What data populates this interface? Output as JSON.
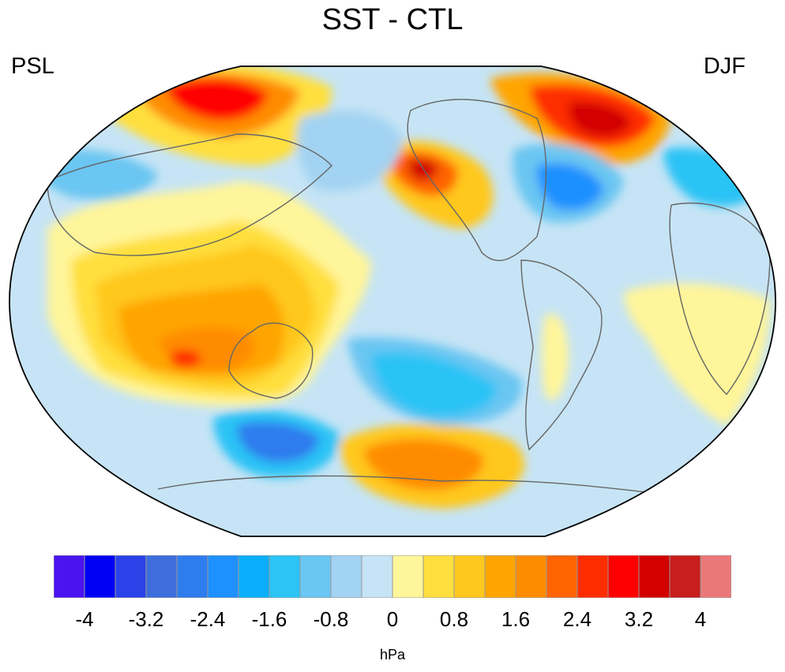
{
  "title": "SST - CTL",
  "left_label": "PSL",
  "right_label": "DJF",
  "units": "hPa",
  "colorbar": {
    "colors": [
      "#4a14f0",
      "#0000f5",
      "#2a42e8",
      "#3d6edc",
      "#2e7cee",
      "#1e90ff",
      "#0aaefa",
      "#2cc3f5",
      "#6ac6f2",
      "#a3d3f2",
      "#c6e4f5",
      "#fff59a",
      "#ffdf3e",
      "#ffc81e",
      "#ffa500",
      "#ff8c00",
      "#ff6400",
      "#ff2d00",
      "#ff0000",
      "#d20000",
      "#c81e1e",
      "#eb7878"
    ],
    "tick_labels": [
      "-4",
      "-3.2",
      "-2.4",
      "-1.6",
      "-0.8",
      "0",
      "0.8",
      "1.6",
      "2.4",
      "3.2",
      "4"
    ]
  },
  "map": {
    "projection": "robinson-pacific-centered",
    "background_color": "#c6e4f5",
    "coastline_color": "#666666"
  }
}
